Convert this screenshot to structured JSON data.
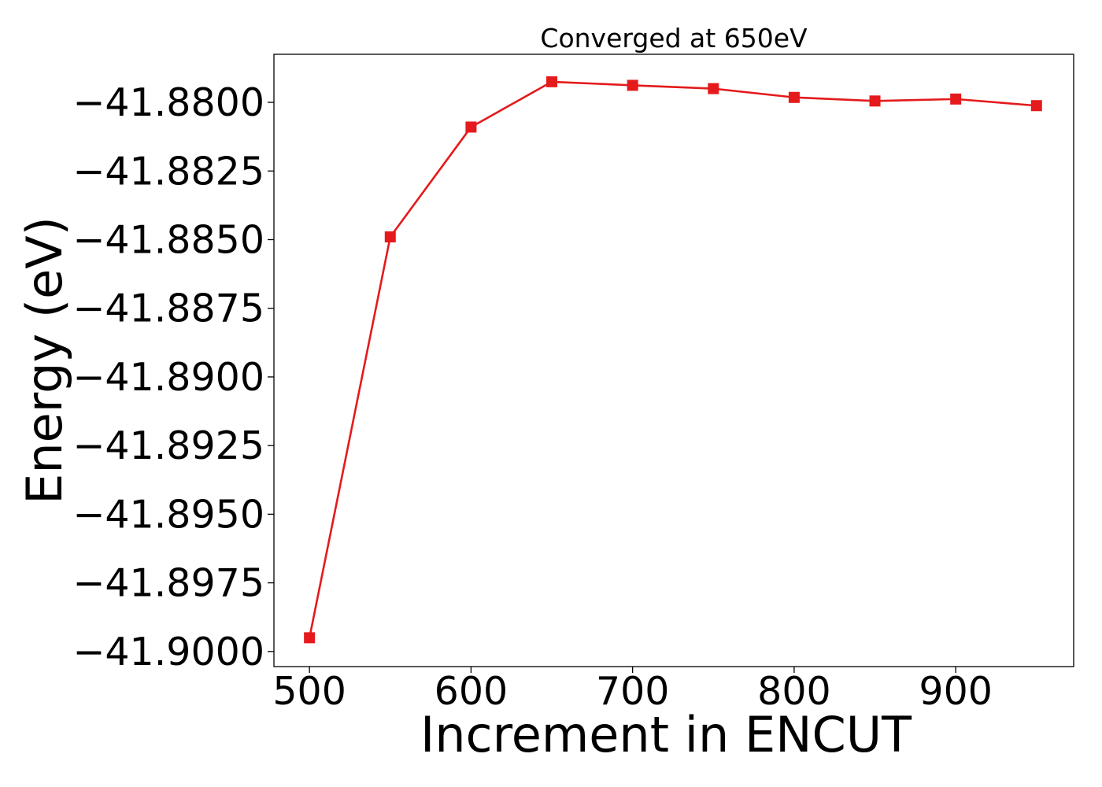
{
  "chart_data": {
    "type": "line",
    "title": "Converged at 650eV",
    "xlabel": "Increment in ENCUT",
    "ylabel": "Energy (eV)",
    "x": [
      500,
      550,
      600,
      650,
      700,
      750,
      800,
      850,
      900,
      950
    ],
    "series": [
      {
        "values": [
          -41.8995,
          -41.8849,
          -41.8809,
          -41.87925,
          -41.87938,
          -41.8795,
          -41.87982,
          -41.87995,
          -41.87988,
          -41.88012
        ],
        "color": "#e41a1c",
        "marker": "square"
      }
    ],
    "xticks": [
      500,
      600,
      700,
      800,
      900
    ],
    "xtick_labels": [
      "500",
      "600",
      "700",
      "800",
      "900"
    ],
    "yticks": [
      -41.88,
      -41.8825,
      -41.885,
      -41.8875,
      -41.89,
      -41.8925,
      -41.895,
      -41.8975,
      -41.9
    ],
    "ytick_labels": [
      "−41.8800",
      "−41.8825",
      "−41.8850",
      "−41.8875",
      "−41.8900",
      "−41.8925",
      "−41.8950",
      "−41.8975",
      "−41.9000"
    ],
    "xlim": [
      478,
      973
    ],
    "ylim": [
      -41.90055,
      -41.87825
    ],
    "grid": false,
    "legend": false
  }
}
